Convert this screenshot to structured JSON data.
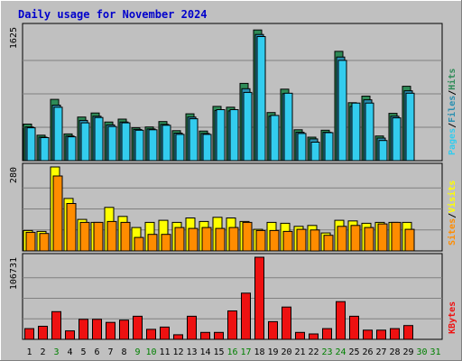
{
  "colors": {
    "frame": "#c0c0c0",
    "plot_bg": "#c0c0c0",
    "title": "#0000cc",
    "hits": "#2e8b57",
    "files": "#2a8fb0",
    "pages": "#33ccee",
    "visits": "#ffff00",
    "sites": "#ff8c00",
    "kbytes": "#ee1111",
    "sep": "#000000",
    "weekend_label": "#008000",
    "weekday_label": "#000000"
  },
  "chart_data": {
    "title": "Daily usage for November 2024",
    "days": [
      "1",
      "2",
      "3",
      "4",
      "5",
      "6",
      "7",
      "8",
      "9",
      "10",
      "11",
      "12",
      "13",
      "14",
      "15",
      "16",
      "17",
      "18",
      "19",
      "20",
      "21",
      "22",
      "23",
      "24",
      "25",
      "26",
      "27",
      "28",
      "29",
      "30",
      "31"
    ],
    "weekend_days": [
      "3",
      "9",
      "10",
      "16",
      "17",
      "23",
      "24",
      "30",
      "31"
    ],
    "panels": [
      {
        "type": "bar",
        "name": "hits-files-pages",
        "max_label": "1625",
        "ymax": 1625,
        "legend": [
          {
            "text": "Pages",
            "color_key": "pages"
          },
          {
            "text": "/",
            "color_key": "sep"
          },
          {
            "text": "Files",
            "color_key": "files"
          },
          {
            "text": "/",
            "color_key": "sep"
          },
          {
            "text": "Hits",
            "color_key": "hits"
          }
        ],
        "series": [
          {
            "name": "Hits",
            "color_key": "hits",
            "values": [
              445,
              310,
              745,
              325,
              530,
              580,
              470,
              505,
              400,
              410,
              475,
              365,
              570,
              360,
              660,
              650,
              940,
              1590,
              585,
              870,
              375,
              285,
              370,
              1330,
              705,
              785,
              300,
              575,
              905,
              0,
              0
            ]
          },
          {
            "name": "Files",
            "color_key": "files",
            "values": [
              410,
              285,
              675,
              300,
              490,
              540,
              435,
              470,
              380,
              385,
              440,
              335,
              530,
              330,
              610,
              605,
              875,
              1535,
              540,
              815,
              345,
              265,
              345,
              1260,
              660,
              740,
              275,
              540,
              850,
              0,
              0
            ]
          },
          {
            "name": "Pages",
            "color_key": "pages",
            "values": [
              400,
              280,
              650,
              290,
              460,
              525,
              415,
              460,
              370,
              375,
              430,
              320,
              510,
              320,
              620,
              620,
              830,
              1510,
              550,
              820,
              330,
              225,
              340,
              1220,
              700,
              700,
              245,
              520,
              820,
              0,
              0
            ]
          }
        ]
      },
      {
        "type": "bar",
        "name": "visits-sites",
        "max_label": "280",
        "ymax": 280,
        "legend": [
          {
            "text": "Sites",
            "color_key": "sites"
          },
          {
            "text": "/",
            "color_key": "sep"
          },
          {
            "text": "Visits",
            "color_key": "visits"
          }
        ],
        "series": [
          {
            "name": "Visits",
            "color_key": "visits",
            "values": [
              68,
              65,
              280,
              175,
              105,
              95,
              145,
              115,
              78,
              95,
              102,
              95,
              110,
              98,
              112,
              110,
              98,
              72,
              95,
              92,
              82,
              85,
              60,
              102,
              100,
              92,
              95,
              95,
              95,
              0,
              0
            ]
          },
          {
            "name": "Sites",
            "color_key": "sites",
            "values": [
              62,
              58,
              250,
              158,
              95,
              95,
              98,
              95,
              45,
              55,
              55,
              78,
              75,
              78,
              75,
              78,
              95,
              68,
              68,
              65,
              72,
              70,
              52,
              82,
              85,
              78,
              90,
              95,
              72,
              0,
              0
            ]
          }
        ]
      },
      {
        "type": "bar",
        "name": "kbytes",
        "max_label": "106731",
        "ymax": 106731,
        "legend": [
          {
            "text": "KBytes",
            "color_key": "kbytes"
          }
        ],
        "series": [
          {
            "name": "KBytes",
            "color_key": "kbytes",
            "values": [
              14000,
              17000,
              36000,
              11000,
              26000,
              26000,
              22000,
              25000,
              30000,
              13000,
              16000,
              6000,
              30000,
              9000,
              9000,
              37000,
              60000,
              106731,
              23000,
              42000,
              9000,
              7000,
              14000,
              49000,
              30000,
              12000,
              12000,
              14000,
              18000,
              0,
              0
            ]
          }
        ]
      }
    ]
  }
}
